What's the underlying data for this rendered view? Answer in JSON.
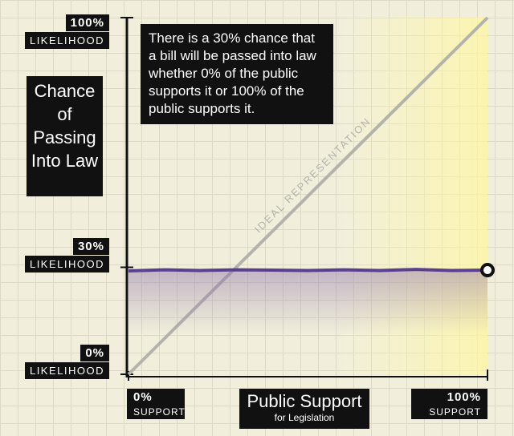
{
  "chart_data": {
    "type": "line",
    "title": "Chance of Passing Into Law",
    "x_label": "Public Support",
    "x_sublabel": "for Legislation",
    "annotation": "There is a 30% chance that a bill will be passed into law whether 0% of the public supports it or 100% of the public supports it.",
    "x": [
      0,
      10,
      20,
      30,
      40,
      50,
      60,
      70,
      80,
      90,
      100
    ],
    "series": [
      {
        "color": "#5b3f8f",
        "values": [
          29,
          29.3,
          29.1,
          29.3,
          29.2,
          29.1,
          29.3,
          29.1,
          29.4,
          29.1,
          29.2
        ]
      }
    ],
    "reference_line": {
      "label": "IDEAL REPRESENTATION",
      "color": "#b3b3ab",
      "x": [
        0,
        100
      ],
      "y": [
        0,
        100
      ]
    },
    "xlim": [
      0,
      100
    ],
    "ylim": [
      0,
      100
    ],
    "xticks": [
      {
        "value": 0,
        "label": "0%",
        "caption": "SUPPORT"
      },
      {
        "value": 100,
        "label": "100%",
        "caption": "SUPPORT"
      }
    ],
    "yticks": [
      {
        "value": 0,
        "label": "0%",
        "caption": "LIKELIHOOD"
      },
      {
        "value": 30,
        "label": "30%",
        "caption": "LIKELIHOOD"
      },
      {
        "value": 100,
        "label": "100%",
        "caption": "LIKELIHOOD"
      }
    ]
  }
}
